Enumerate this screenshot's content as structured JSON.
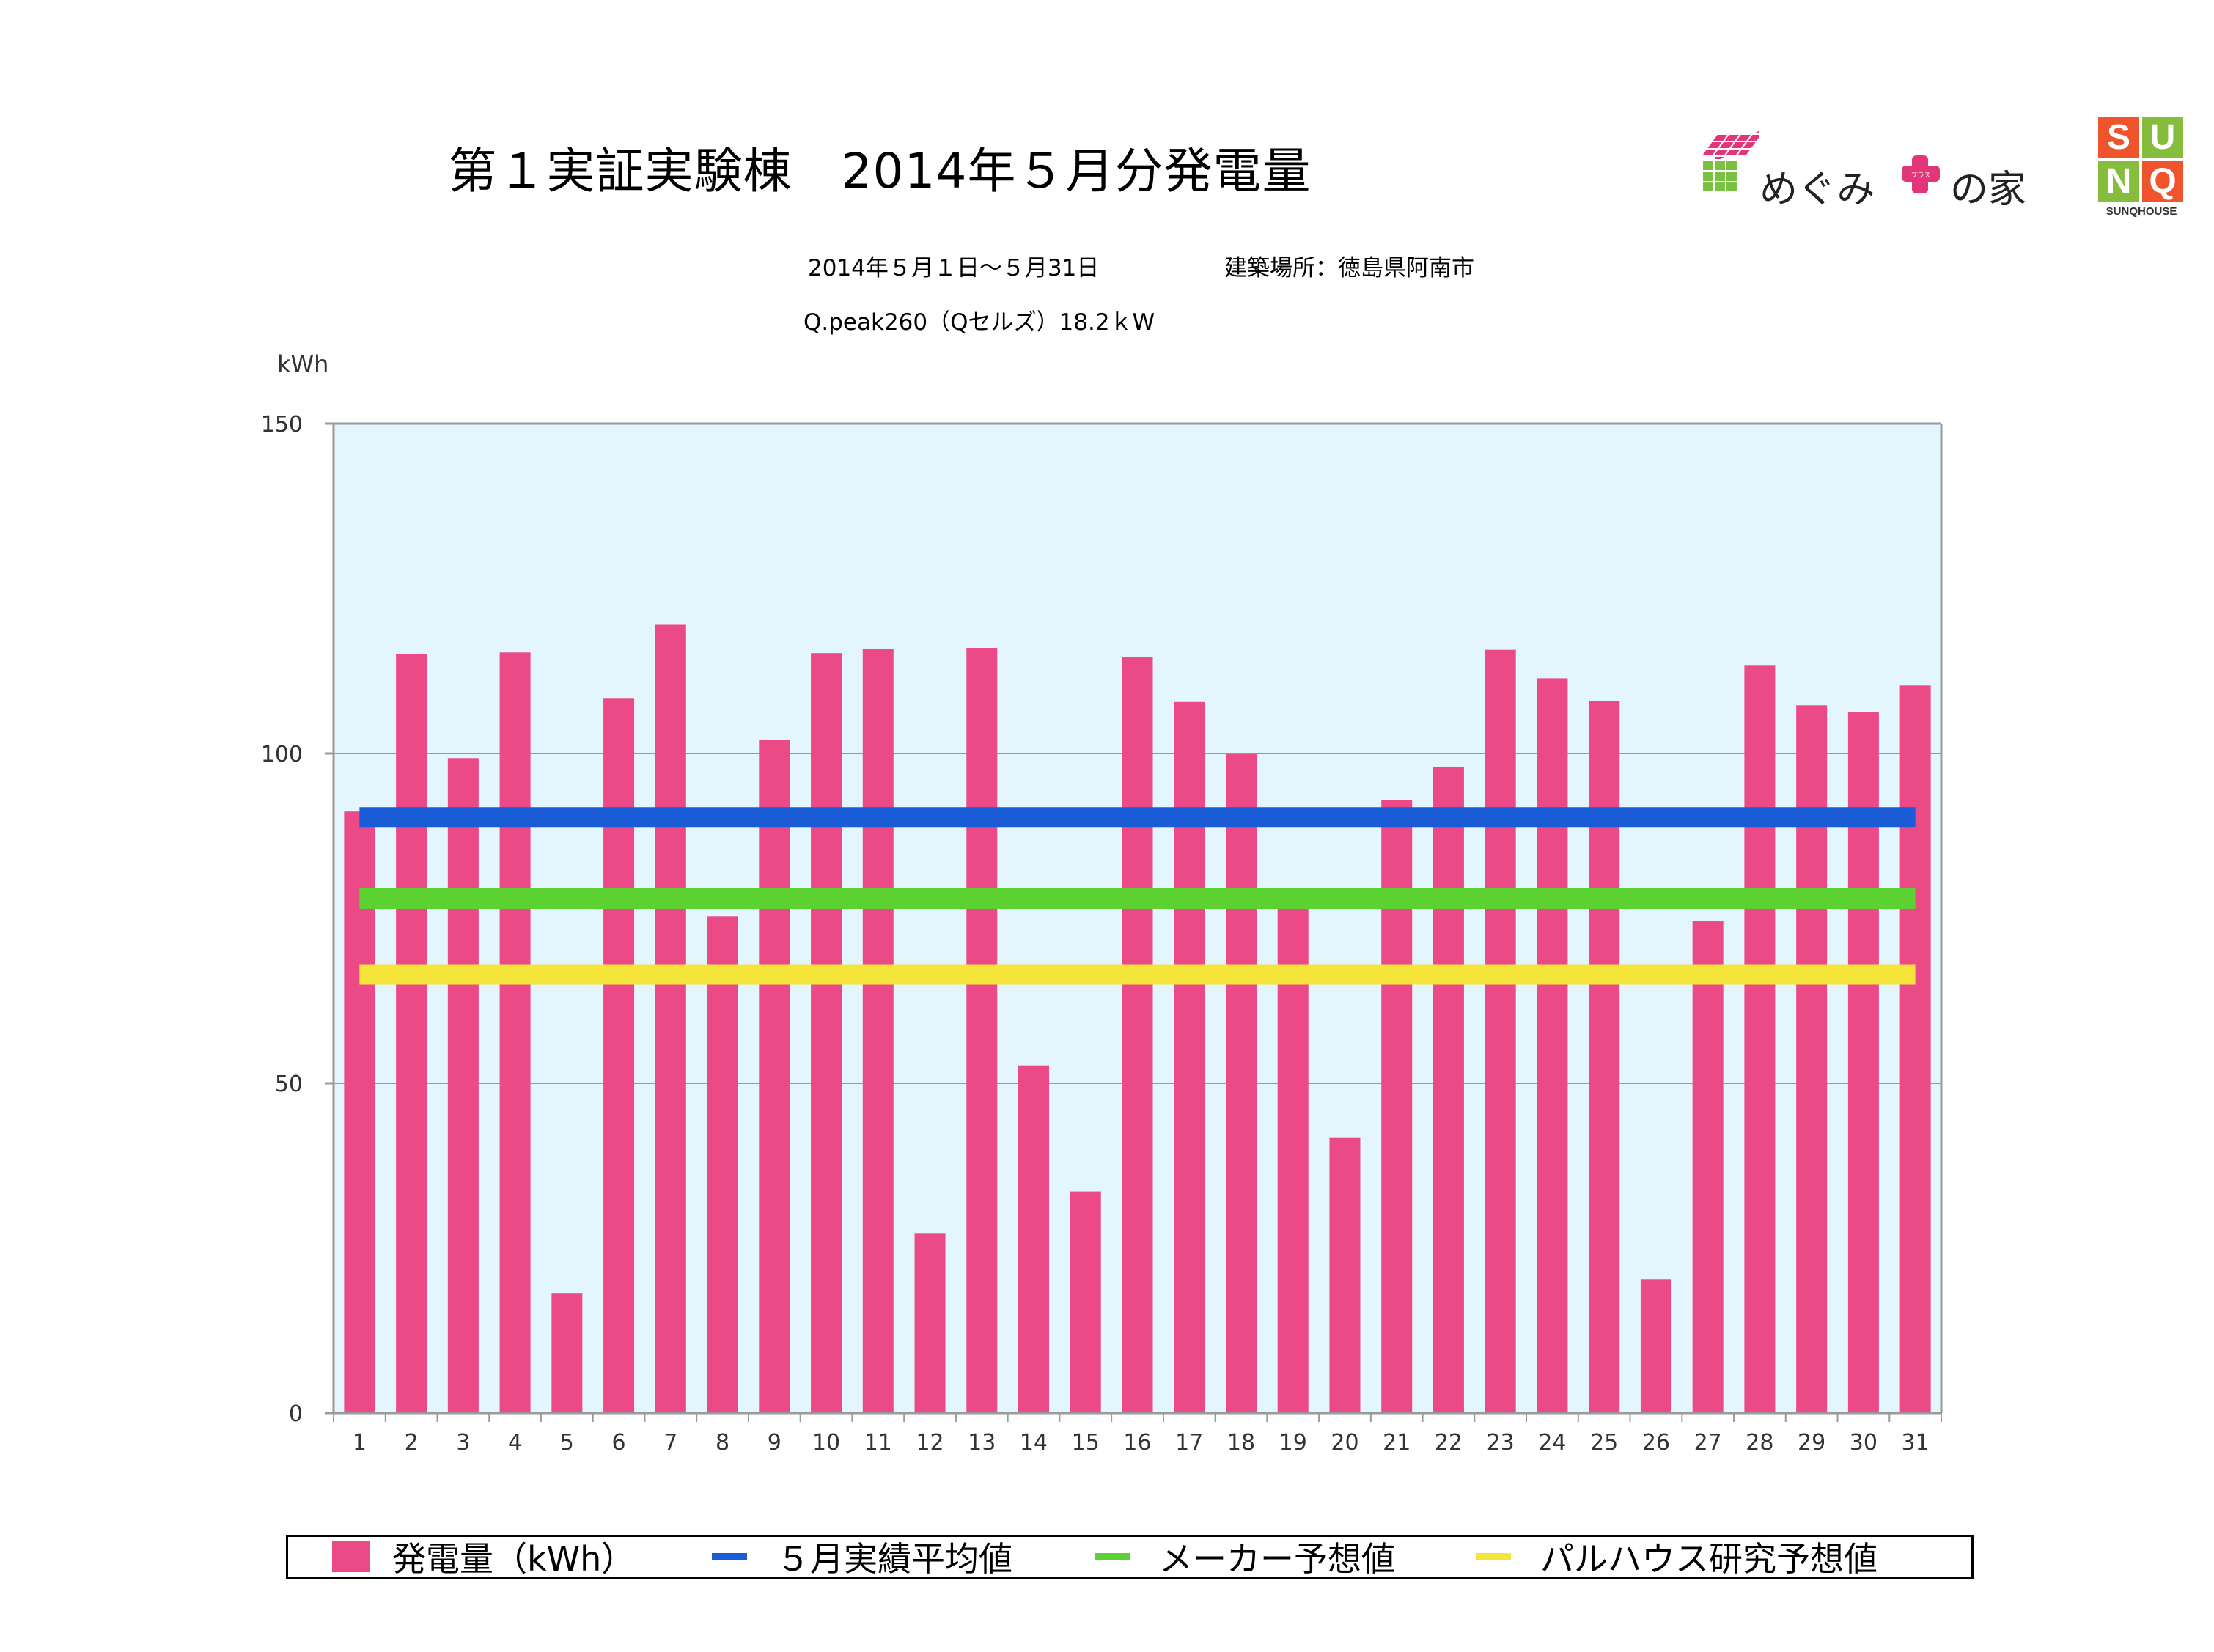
{
  "header": {
    "title": "第１実証実験棟　2014年５月分発電量",
    "period": "2014年５月１日〜５月31日",
    "location": "建築場所：徳島県阿南市",
    "system": "Q.peak260（Qセルズ）18.2ｋW"
  },
  "logos": {
    "megumi_text_a": "めぐみ",
    "megumi_plus": "プラス",
    "megumi_text_b": "の家",
    "sunq_letters": [
      "S",
      "U",
      "N",
      "Q"
    ],
    "sunq_caption": "SUNQHOUSE"
  },
  "colors": {
    "bar": "#ec4a86",
    "plot_bg": "#e3f6fd",
    "avg_line": "#1a5bd6",
    "maker_line": "#5cd132",
    "palhouse_line": "#f5e43a",
    "grid": "#9a9a9a",
    "megumi_pink": "#e2357a",
    "megumi_green": "#7ac143",
    "sunq_orange": "#f0542c",
    "sunq_green": "#86bd3d"
  },
  "chart_data": {
    "type": "bar",
    "ylabel": "kWh",
    "ylim": [
      0,
      150
    ],
    "yticks": [
      0,
      50,
      100,
      150
    ],
    "grid": true,
    "categories": [
      "1",
      "2",
      "3",
      "4",
      "5",
      "6",
      "7",
      "8",
      "9",
      "10",
      "11",
      "12",
      "13",
      "14",
      "15",
      "16",
      "17",
      "18",
      "19",
      "20",
      "21",
      "22",
      "23",
      "24",
      "25",
      "26",
      "27",
      "28",
      "29",
      "30",
      "31"
    ],
    "series": [
      {
        "name": "発電量（kWh）",
        "type": "bar",
        "values": [
          91.2,
          115.1,
          99.3,
          115.3,
          18.2,
          108.3,
          119.5,
          75.3,
          102.1,
          115.2,
          115.8,
          27.3,
          116.0,
          52.7,
          33.6,
          114.6,
          107.8,
          99.9,
          76.7,
          41.7,
          93.0,
          98.0,
          115.7,
          111.4,
          108.0,
          20.3,
          74.6,
          113.3,
          107.3,
          106.3,
          110.3
        ]
      },
      {
        "name": "５月実績平均値",
        "type": "hline",
        "value": 90.3
      },
      {
        "name": "メーカー予想値",
        "type": "hline",
        "value": 78.0
      },
      {
        "name": "パルハウス研究予想値",
        "type": "hline",
        "value": 66.5
      }
    ],
    "legend_position": "bottom"
  }
}
